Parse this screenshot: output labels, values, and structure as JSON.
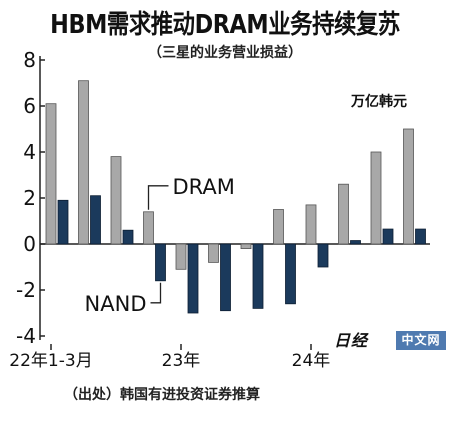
{
  "title": "HBM需求推动DRAM业务持续复苏",
  "subtitle": "（三星的业务营业损益）",
  "unit": "万亿韩元",
  "source": "（出处）韩国有进投资证券推算",
  "logo": {
    "mark": "日经",
    "box": "中文网"
  },
  "colors": {
    "dram": "#a8a8a8",
    "nand": "#1b3a5c",
    "axis": "#222222"
  },
  "chart_data": {
    "type": "bar",
    "ylim": [
      -4,
      8
    ],
    "yticks": [
      -4,
      -2,
      0,
      2,
      4,
      6,
      8
    ],
    "ytick_labels": [
      "-4",
      "-2",
      "0",
      "2",
      "4",
      "6",
      "8"
    ],
    "categories": [
      "22年1-3月",
      "",
      "",
      "",
      "23年",
      "",
      "",
      "",
      "24年",
      "",
      "",
      ""
    ],
    "x_labels": [
      {
        "index": 0,
        "text": "22年1-3月"
      },
      {
        "index": 4,
        "text": "23年"
      },
      {
        "index": 8,
        "text": "24年"
      }
    ],
    "series": [
      {
        "name": "DRAM",
        "values": [
          6.1,
          7.1,
          3.8,
          1.4,
          -1.1,
          -0.8,
          -0.2,
          1.5,
          1.7,
          2.6,
          4.0,
          5.0
        ]
      },
      {
        "name": "NAND",
        "values": [
          1.9,
          2.1,
          0.6,
          -1.6,
          -3.0,
          -2.9,
          -2.8,
          -2.6,
          -1.0,
          0.15,
          0.65,
          0.65
        ]
      }
    ]
  }
}
